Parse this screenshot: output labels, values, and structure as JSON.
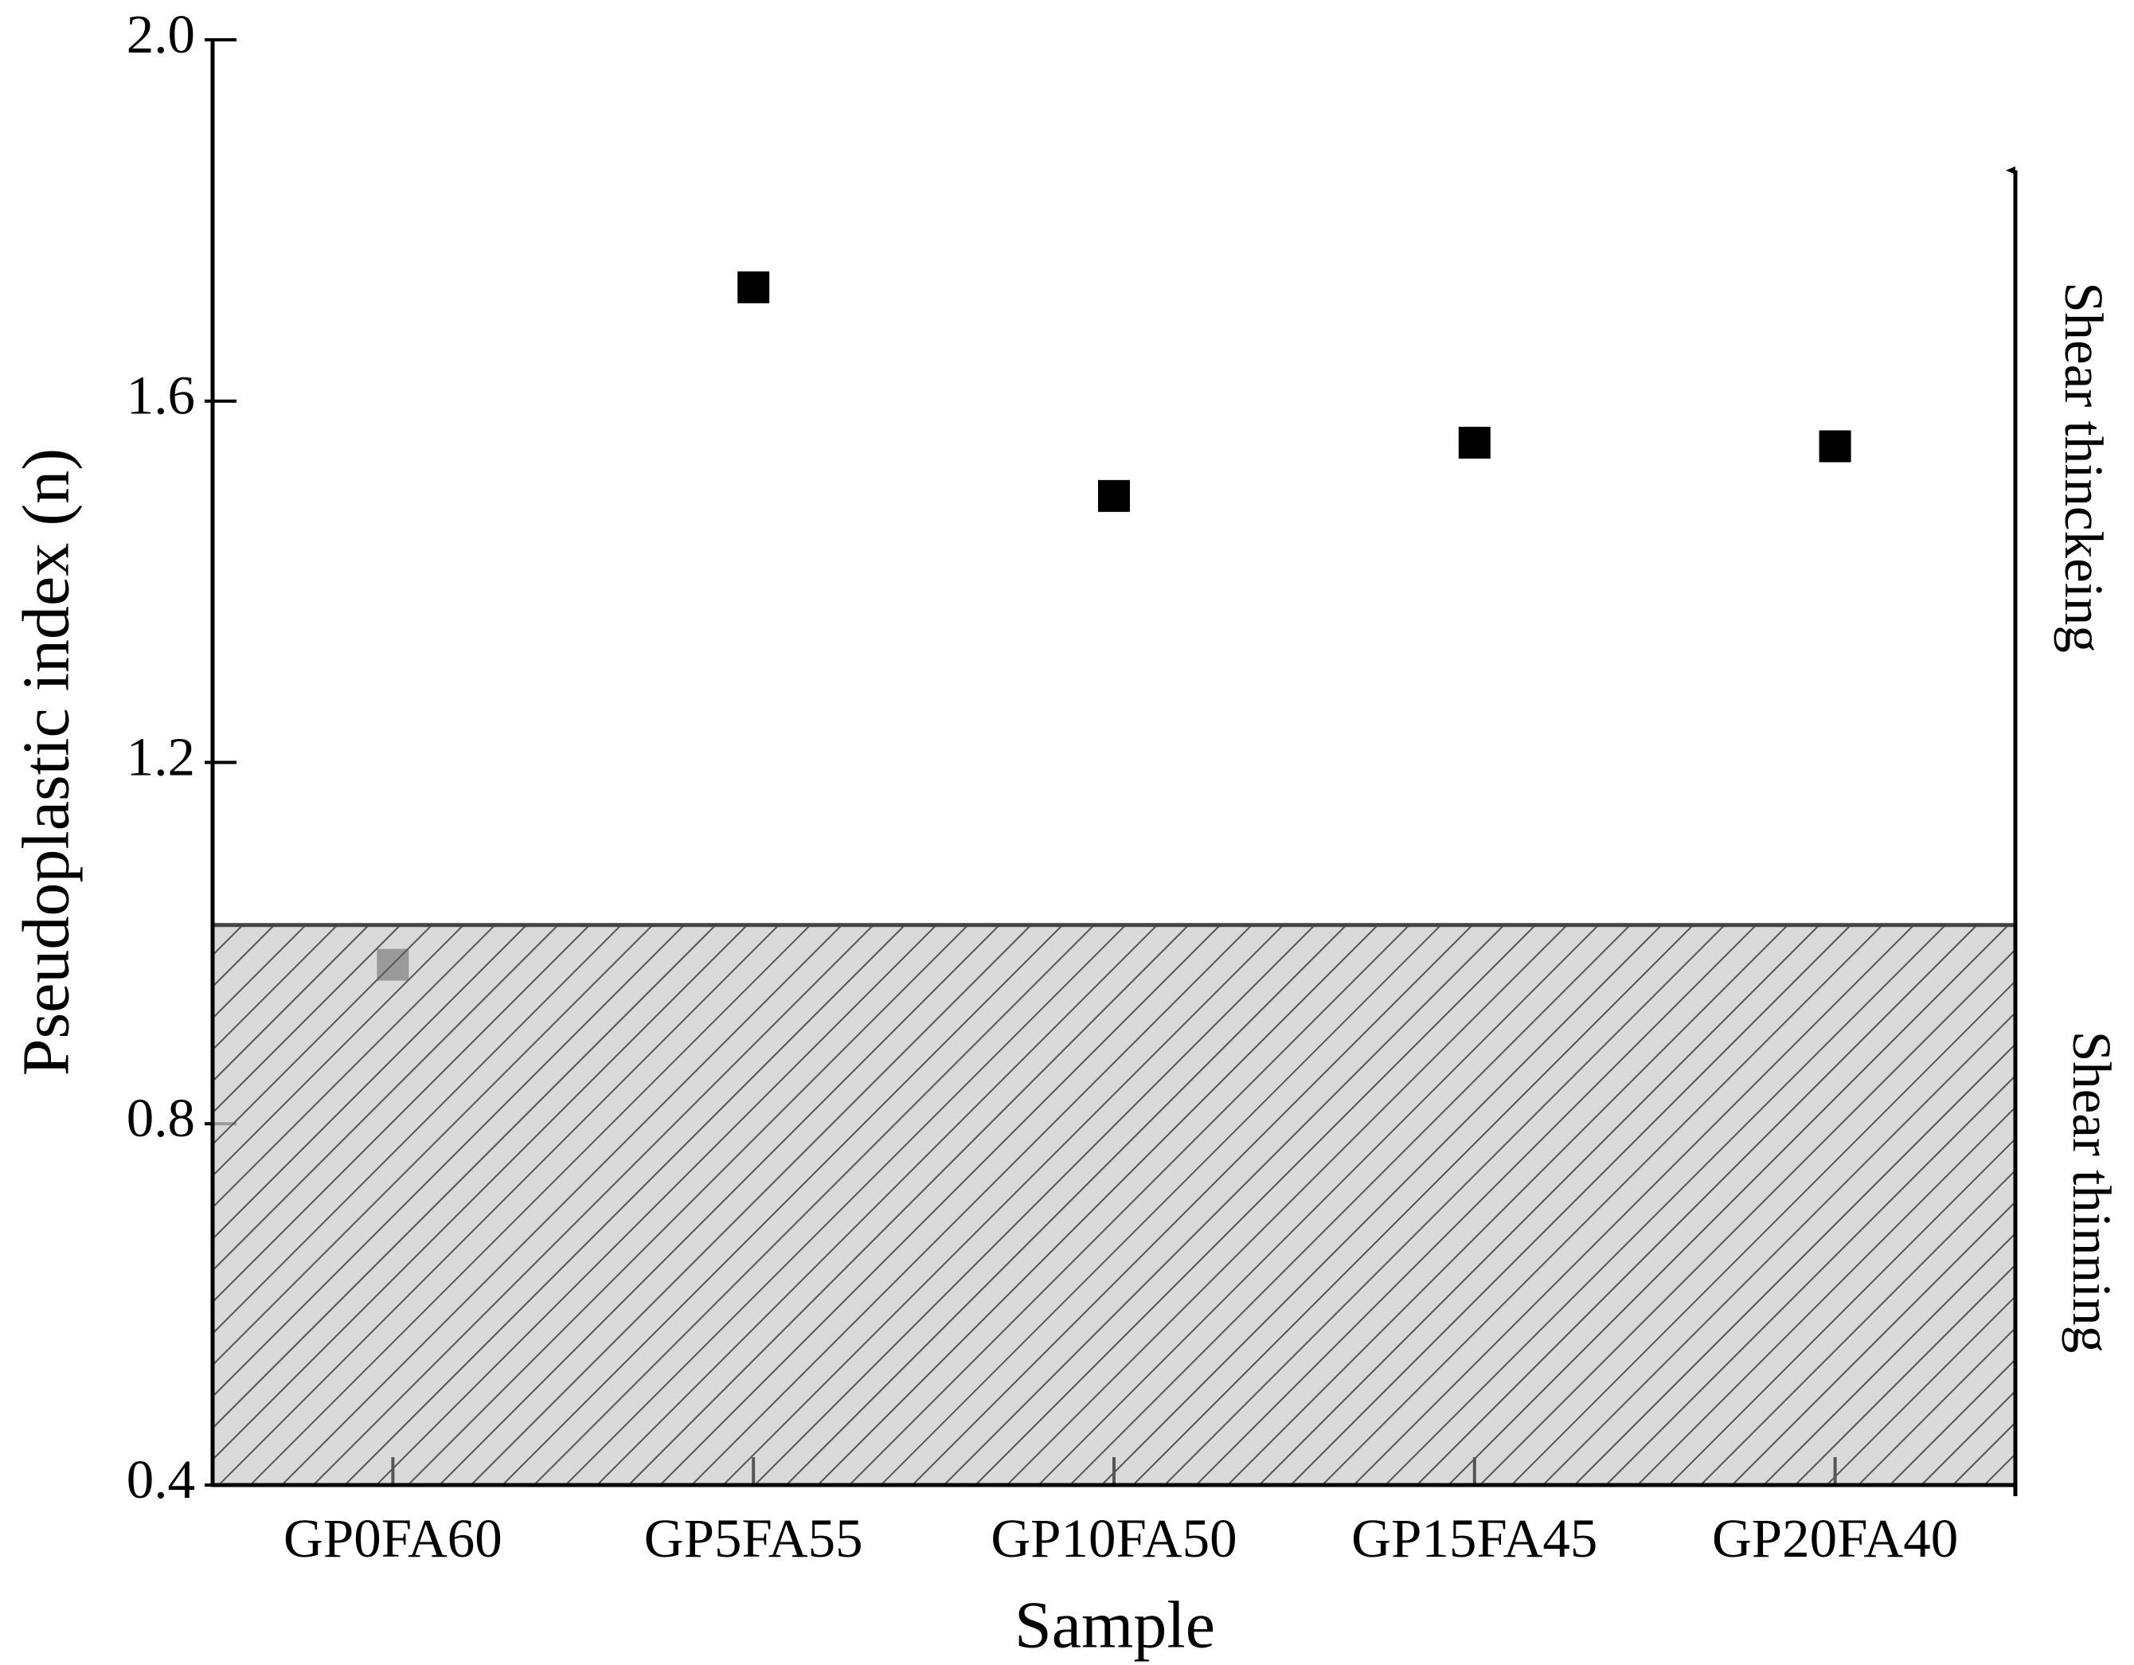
{
  "chart_data": {
    "type": "scatter",
    "x_label": "Sample",
    "y_label": "Pseudoplastic index (n)",
    "categories": [
      "GP0FA60",
      "GP5FA55",
      "GP10FA50",
      "GP15FA45",
      "GP20FA40"
    ],
    "values": [
      0.976,
      1.726,
      1.495,
      1.554,
      1.55
    ],
    "color": "#000000",
    "ylim": [
      0.4,
      2.0
    ],
    "yticks": [
      0.4,
      0.8,
      1.2,
      1.6,
      {
        "value": 2,
        "label": "2.0"
      }
    ],
    "shaded_below": 1.02,
    "annotations": [
      "Shear thinckeing",
      "Shear thinning"
    ]
  }
}
